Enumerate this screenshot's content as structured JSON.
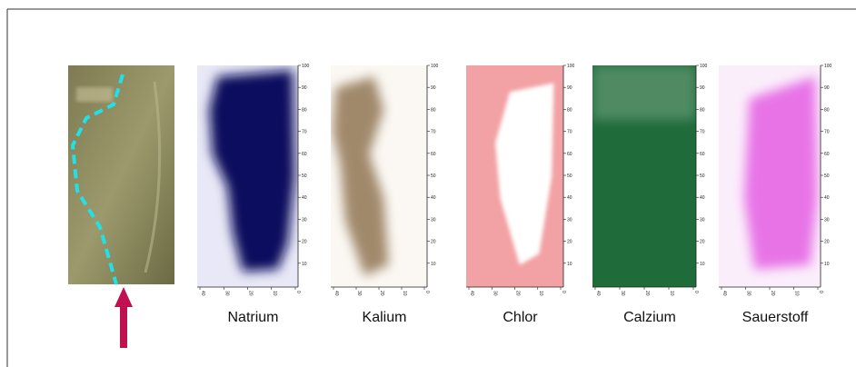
{
  "panels": [
    {
      "label": "Natrium",
      "color": "#0b0c5e"
    },
    {
      "label": "Kalium",
      "color": "#7a5a33"
    },
    {
      "label": "Chlor",
      "color": "#e8555a"
    },
    {
      "label": "Calzium",
      "color": "#1f6b3a"
    },
    {
      "label": "Sauerstoff",
      "color": "#e14be0"
    }
  ],
  "axis": {
    "right_ticks": [
      "100",
      "90",
      "80",
      "70",
      "60",
      "50",
      "40",
      "30",
      "20",
      "10"
    ],
    "bottom_ticks": [
      "40",
      "30",
      "20",
      "10",
      "0"
    ]
  }
}
